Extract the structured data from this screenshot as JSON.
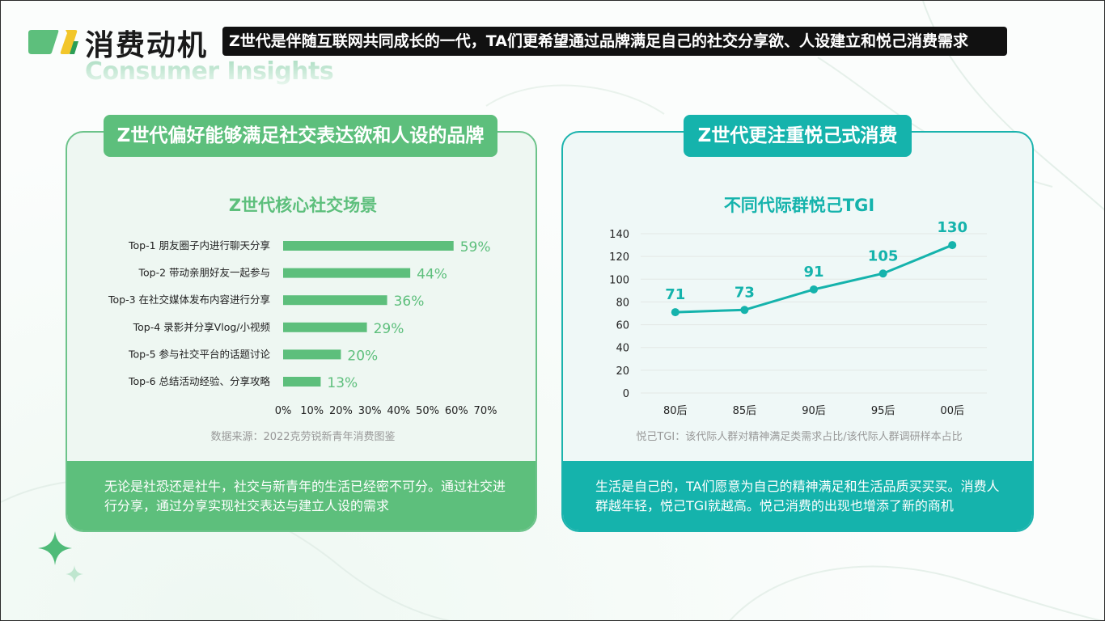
{
  "header": {
    "title_cn": "消费动机",
    "title_en": "Consumer Insights",
    "banner": "Z世代是伴随互联网共同成长的一代，TA们更希望通过品牌满足自己的社交分享欲、人设建立和悦己消费需求"
  },
  "colors": {
    "green": "#5dbf7c",
    "teal": "#15b3ac"
  },
  "left_panel": {
    "tab": "Z世代偏好能够满足社交表达欲和人设的品牌",
    "source": "数据来源：2022克劳锐新青年消费图鉴",
    "footer": "无论是社恐还是社牛，社交与新青年的生活已经密不可分。通过社交进行分享，通过分享实现社交表达与建立人设的需求"
  },
  "right_panel": {
    "tab": "Z世代更注重悦己式消费",
    "source": "悦己TGI：该代际人群对精神满足类需求占比/该代际人群调研样本占比",
    "footer": "生活是自己的，TA们愿意为自己的精神满足和生活品质买买买。消费人群越年轻，悦己TGI就越高。悦己消费的出现也增添了新的商机"
  },
  "chart_data": [
    {
      "type": "bar",
      "orientation": "horizontal",
      "title": "Z世代核心社交场景",
      "categories": [
        "Top-1 朋友圈子内进行聊天分享",
        "Top-2 带动亲朋好友一起参与",
        "Top-3 在社交媒体发布内容进行分享",
        "Top-4 录影并分享Vlog/小视频",
        "Top-5 参与社交平台的话题讨论",
        "Top-6 总结活动经验、分享攻略"
      ],
      "values": [
        59,
        44,
        36,
        29,
        20,
        13
      ],
      "value_labels": [
        "59%",
        "44%",
        "36%",
        "29%",
        "20%",
        "13%"
      ],
      "xlim": [
        0,
        70
      ],
      "xticks": [
        "0%",
        "10%",
        "20%",
        "30%",
        "40%",
        "50%",
        "60%",
        "70%"
      ],
      "xtick_values": [
        0,
        10,
        20,
        30,
        40,
        50,
        60,
        70
      ],
      "grid": false
    },
    {
      "type": "line",
      "title": "不同代际群悦己TGI",
      "categories": [
        "80后",
        "85后",
        "90后",
        "95后",
        "00后"
      ],
      "values": [
        71,
        73,
        91,
        105,
        130
      ],
      "ylim": [
        0,
        140
      ],
      "yticks": [
        0,
        20,
        40,
        60,
        80,
        100,
        120,
        140
      ],
      "grid": true
    }
  ]
}
